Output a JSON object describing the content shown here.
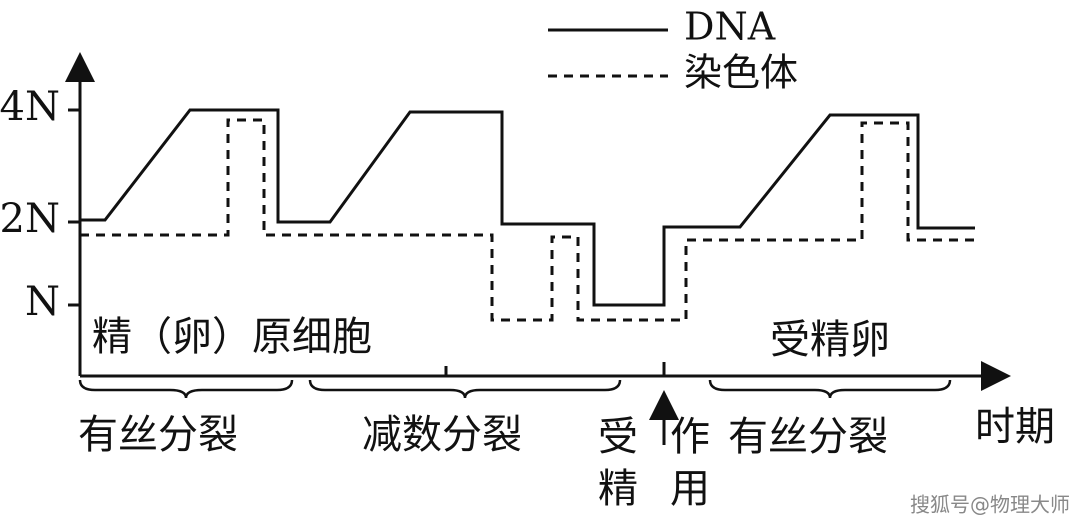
{
  "legend": [
    "DNA",
    "染色体"
  ],
  "y_axis": {
    "labels": [
      "4N",
      "2N",
      "N"
    ]
  },
  "x_axis": {
    "label": "时期"
  },
  "cells": [
    "精（卵）原细胞",
    "受精卵"
  ],
  "stages": {
    "mitosis_1": "有丝分裂",
    "meiosis": "减数分裂",
    "fertilization": [
      "受",
      "精",
      "作",
      "用"
    ],
    "mitosis_2": "有丝分裂"
  },
  "watermark": "搜狐号@物理大师"
}
